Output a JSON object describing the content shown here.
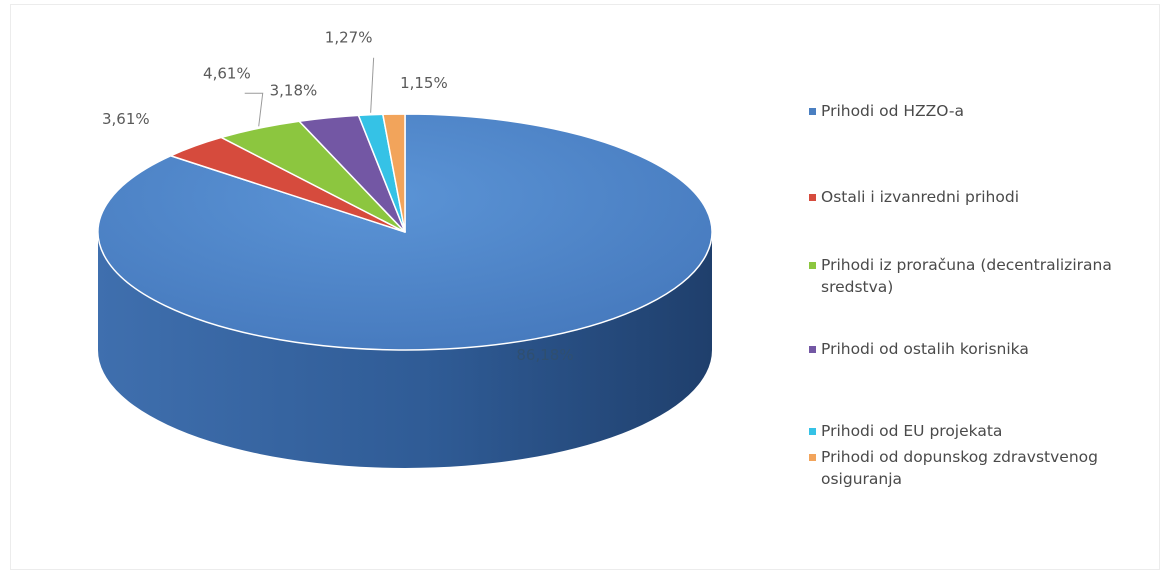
{
  "chart_data": {
    "type": "pie",
    "title": "",
    "unit": "%",
    "legend_position": "right",
    "slices": [
      {
        "name": "Prihodi od HZZO-a",
        "value": 86.18,
        "label": "86,18%",
        "color": "#4a7fc1"
      },
      {
        "name": "Ostali i izvanredni prihodi",
        "value": 3.61,
        "label": "3,61%",
        "color": "#d64b3d"
      },
      {
        "name": "Prihodi iz proračuna (decentralizirana sredstva)",
        "value": 4.61,
        "label": "4,61%",
        "color": "#8cc63f"
      },
      {
        "name": "Prihodi od ostalih korisnika",
        "value": 3.18,
        "label": "3,18%",
        "color": "#7357a4"
      },
      {
        "name": "Prihodi od EU projekata",
        "value": 1.27,
        "label": "1,27%",
        "color": "#35c2e6"
      },
      {
        "name": "Prihodi od dopunskog zdravstvenog osiguranja",
        "value": 1.15,
        "label": "1,15%",
        "color": "#f2a45b"
      }
    ]
  }
}
